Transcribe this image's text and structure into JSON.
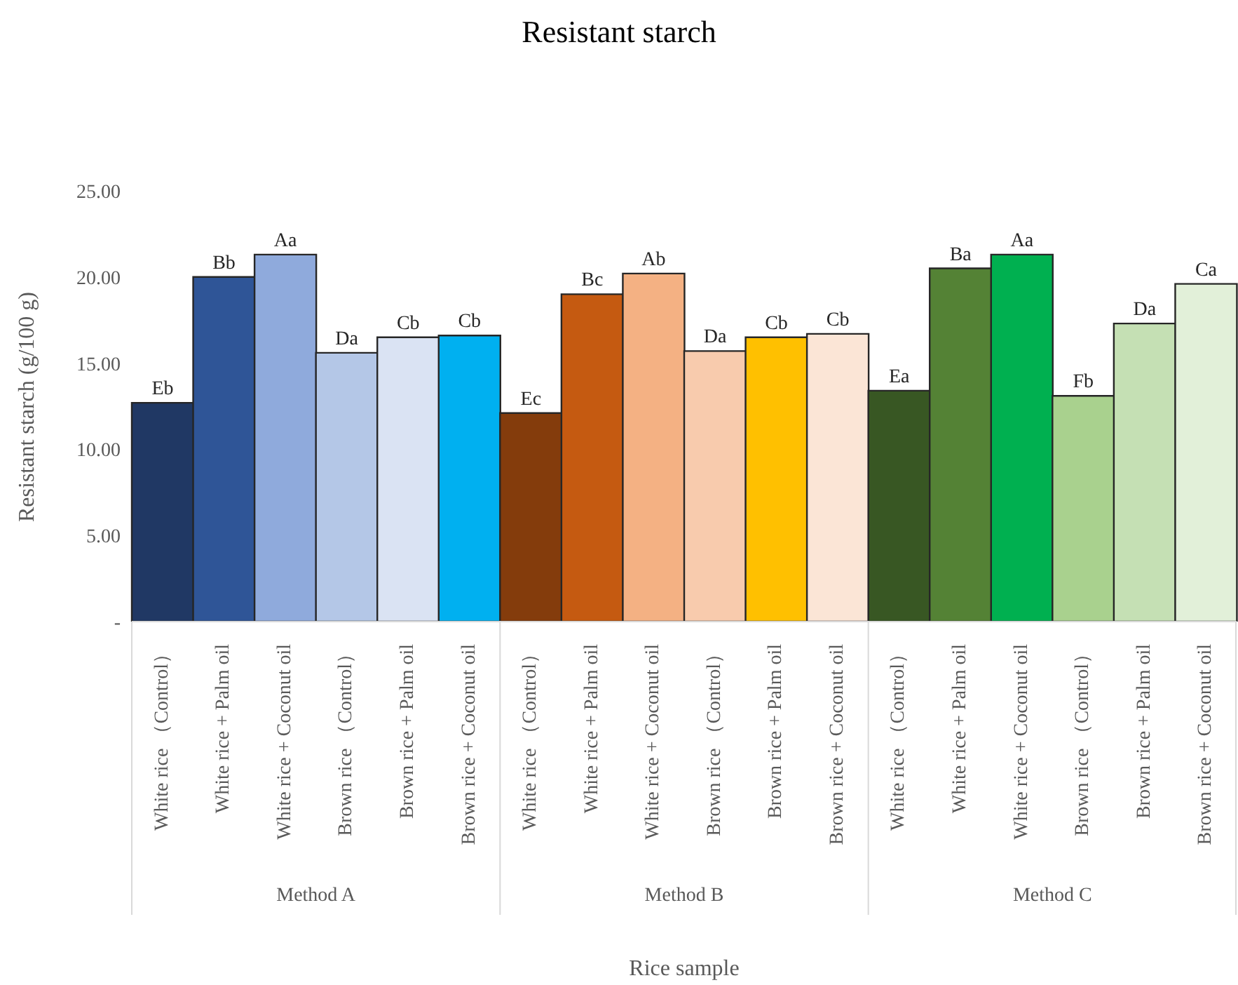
{
  "chart_data": {
    "type": "bar",
    "title": "Resistant starch",
    "xlabel": "Rice sample",
    "ylabel": "Resistant starch (g/100 g)",
    "categories": [
      "White rice （Control）",
      "White rice + Palm oil",
      "White rice + Coconut oil",
      "Brown rice （Control）",
      "Brown rice + Palm oil",
      "Brown rice + Coconut oil",
      "White rice （Control）",
      "White rice + Palm oil",
      "White rice + Coconut oil",
      "Brown rice （Control）",
      "Brown rice + Palm oil",
      "Brown rice + Coconut oil",
      "White rice （Control）",
      "White rice + Palm oil",
      "White rice + Coconut oil",
      "Brown rice （Control）",
      "Brown rice + Palm oil",
      "Brown rice + Coconut oil"
    ],
    "values": [
      12.7,
      20.0,
      21.3,
      15.6,
      16.5,
      16.6,
      12.1,
      19.0,
      20.2,
      15.7,
      16.5,
      16.7,
      13.4,
      20.5,
      21.3,
      13.1,
      17.3,
      19.6
    ],
    "value_labels": [
      "Eb",
      "Bb",
      "Aa",
      "Da",
      "Cb",
      "Cb",
      "Ec",
      "Bc",
      "Ab",
      "Da",
      "Cb",
      "Cb",
      "Ea",
      "Ba",
      "Aa",
      "Fb",
      "Da",
      "Ca"
    ],
    "colors": [
      "#203864",
      "#2f5597",
      "#8faadc",
      "#b4c7e7",
      "#dae3f3",
      "#00b0f0",
      "#843c0c",
      "#c55a11",
      "#f4b183",
      "#f8cbad",
      "#ffc000",
      "#fbe5d6",
      "#385723",
      "#548235",
      "#00b050",
      "#a9d18e",
      "#c5e0b4",
      "#e2f0d9"
    ],
    "annotations": [
      "Method A",
      "Method B",
      "Method C"
    ],
    "ylim": [
      0,
      25
    ],
    "yticks": [
      {
        "value": 0,
        "label": "-"
      },
      {
        "value": 5,
        "label": "5.00"
      },
      {
        "value": 10,
        "label": "10.00"
      },
      {
        "value": 15,
        "label": "15.00"
      },
      {
        "value": 20,
        "label": "20.00"
      },
      {
        "value": 25,
        "label": "25.00"
      }
    ],
    "grid": false,
    "legend": false
  }
}
